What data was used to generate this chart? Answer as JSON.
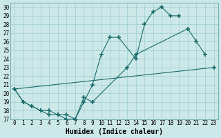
{
  "xlabel": "Humidex (Indice chaleur)",
  "bg_color": "#cce8e8",
  "grid_color": "#9ecece",
  "line_color": "#1a6b6b",
  "xlim": [
    -0.5,
    23.5
  ],
  "ylim": [
    17,
    30.5
  ],
  "xticks": [
    0,
    1,
    2,
    3,
    4,
    5,
    6,
    7,
    8,
    9,
    10,
    11,
    12,
    13,
    14,
    15,
    16,
    17,
    18,
    19,
    20,
    21,
    22,
    23
  ],
  "yticks": [
    17,
    18,
    19,
    20,
    21,
    22,
    23,
    24,
    25,
    26,
    27,
    28,
    29,
    30
  ],
  "series": [
    {
      "x": [
        0,
        1,
        2,
        3,
        4,
        5,
        6,
        7,
        8,
        9,
        10,
        11,
        12,
        14,
        15,
        16,
        17,
        18,
        19
      ],
      "y": [
        20.5,
        19.0,
        18.5,
        18.0,
        17.5,
        17.5,
        17.0,
        17.0,
        19.0,
        21.0,
        24.5,
        26.5,
        26.5,
        24.0,
        28.0,
        29.5,
        30.0,
        29.0,
        29.0
      ]
    },
    {
      "x": [
        0,
        1,
        2,
        3,
        4,
        5,
        6,
        7,
        8,
        9,
        13,
        14,
        20,
        21,
        22
      ],
      "y": [
        20.5,
        19.0,
        18.5,
        18.0,
        18.0,
        17.5,
        17.5,
        17.0,
        19.5,
        19.0,
        23.0,
        24.5,
        27.5,
        26.0,
        24.5
      ]
    },
    {
      "x": [
        0,
        23
      ],
      "y": [
        20.5,
        23.0
      ]
    }
  ]
}
